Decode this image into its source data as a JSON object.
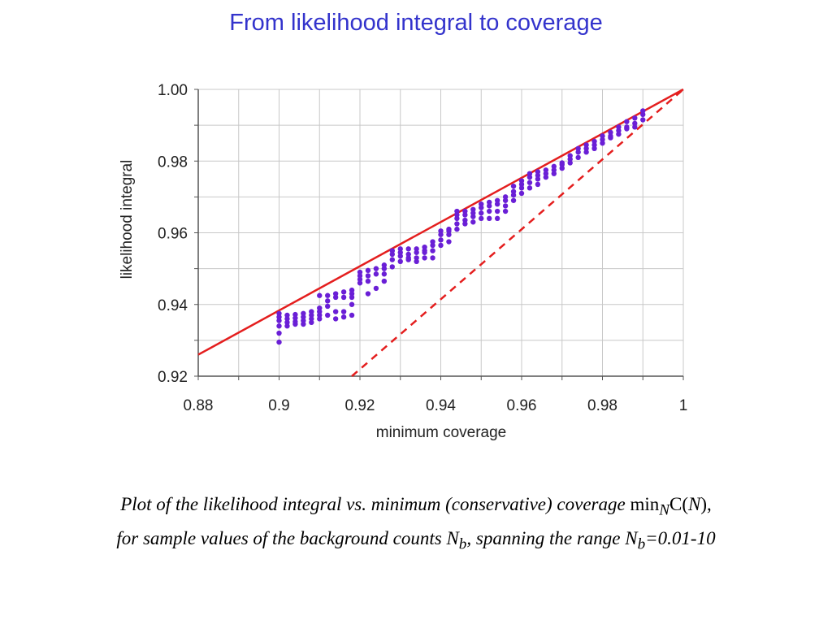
{
  "slide": {
    "title": "From likelihood integral to coverage"
  },
  "caption": {
    "line1_text": "Plot of the likelihood integral vs. minimum (conservative) coverage ",
    "line1_math_min": "min",
    "line1_math_sub": "N",
    "line1_math_C": "C(",
    "line1_math_N": "N",
    "line1_math_close": "),",
    "line2_text": "for sample values of  the background counts N",
    "line2_sub_b1": "b",
    "line2_mid": ", spanning the range N",
    "line2_sub_b2": "b",
    "line2_end": "=0.01-10"
  },
  "chart_data": {
    "type": "scatter",
    "xlabel": "minimum coverage",
    "ylabel": "likelihood integral",
    "xlim": [
      0.88,
      1.0
    ],
    "ylim": [
      0.92,
      1.0
    ],
    "x_ticks": [
      0.88,
      0.9,
      0.92,
      0.94,
      0.96,
      0.98,
      1.0
    ],
    "x_tick_labels": [
      "0.88",
      "0.9",
      "0.92",
      "0.94",
      "0.96",
      "0.98",
      "1"
    ],
    "y_ticks": [
      0.92,
      0.94,
      0.96,
      0.98,
      1.0
    ],
    "y_tick_labels": [
      "0.92",
      "0.94",
      "0.96",
      "0.98",
      "1.00"
    ],
    "grid": true,
    "colors": {
      "points": "#6a1fd6",
      "solid_line": "#e41e1e",
      "dashed_line": "#e41e1e",
      "grid": "#c8c8c8",
      "axis": "#555555"
    },
    "lines": [
      {
        "style": "solid",
        "x": [
          0.88,
          1.0
        ],
        "y": [
          0.926,
          1.0
        ]
      },
      {
        "style": "dashed",
        "x": [
          0.918,
          1.0
        ],
        "y": [
          0.92,
          1.0
        ]
      }
    ],
    "points": {
      "x": [
        0.9,
        0.9,
        0.9,
        0.9,
        0.9,
        0.9,
        0.902,
        0.902,
        0.902,
        0.902,
        0.904,
        0.904,
        0.904,
        0.904,
        0.906,
        0.906,
        0.906,
        0.906,
        0.908,
        0.908,
        0.908,
        0.908,
        0.91,
        0.91,
        0.91,
        0.91,
        0.91,
        0.912,
        0.912,
        0.912,
        0.912,
        0.914,
        0.914,
        0.914,
        0.914,
        0.916,
        0.916,
        0.916,
        0.916,
        0.918,
        0.918,
        0.918,
        0.918,
        0.918,
        0.92,
        0.92,
        0.92,
        0.92,
        0.922,
        0.922,
        0.922,
        0.922,
        0.924,
        0.924,
        0.924,
        0.926,
        0.926,
        0.926,
        0.926,
        0.928,
        0.928,
        0.928,
        0.928,
        0.93,
        0.93,
        0.93,
        0.93,
        0.932,
        0.932,
        0.932,
        0.932,
        0.934,
        0.934,
        0.934,
        0.934,
        0.936,
        0.936,
        0.936,
        0.936,
        0.938,
        0.938,
        0.938,
        0.938,
        0.94,
        0.94,
        0.94,
        0.94,
        0.942,
        0.942,
        0.942,
        0.942,
        0.944,
        0.944,
        0.944,
        0.944,
        0.944,
        0.946,
        0.946,
        0.946,
        0.946,
        0.948,
        0.948,
        0.948,
        0.948,
        0.95,
        0.95,
        0.95,
        0.95,
        0.952,
        0.952,
        0.952,
        0.952,
        0.954,
        0.954,
        0.954,
        0.954,
        0.956,
        0.956,
        0.956,
        0.956,
        0.958,
        0.958,
        0.958,
        0.958,
        0.96,
        0.96,
        0.96,
        0.96,
        0.962,
        0.962,
        0.962,
        0.962,
        0.964,
        0.964,
        0.964,
        0.964,
        0.966,
        0.966,
        0.966,
        0.968,
        0.968,
        0.968,
        0.97,
        0.97,
        0.97,
        0.972,
        0.972,
        0.972,
        0.974,
        0.974,
        0.974,
        0.976,
        0.976,
        0.976,
        0.978,
        0.978,
        0.978,
        0.98,
        0.98,
        0.98,
        0.982,
        0.982,
        0.982,
        0.984,
        0.984,
        0.984,
        0.986,
        0.986,
        0.986,
        0.988,
        0.988,
        0.988,
        0.99,
        0.99,
        0.99
      ],
      "y": [
        0.9375,
        0.9365,
        0.9355,
        0.934,
        0.932,
        0.9295,
        0.937,
        0.936,
        0.935,
        0.934,
        0.9372,
        0.9362,
        0.9352,
        0.9345,
        0.9375,
        0.9365,
        0.9355,
        0.9345,
        0.938,
        0.937,
        0.936,
        0.935,
        0.9425,
        0.939,
        0.938,
        0.937,
        0.936,
        0.9425,
        0.941,
        0.9395,
        0.937,
        0.943,
        0.942,
        0.938,
        0.936,
        0.9435,
        0.942,
        0.938,
        0.9365,
        0.944,
        0.943,
        0.942,
        0.94,
        0.937,
        0.949,
        0.948,
        0.947,
        0.946,
        0.9495,
        0.948,
        0.9465,
        0.943,
        0.95,
        0.9485,
        0.9445,
        0.951,
        0.95,
        0.9485,
        0.9465,
        0.955,
        0.954,
        0.9525,
        0.9505,
        0.9555,
        0.9545,
        0.9535,
        0.952,
        0.9555,
        0.954,
        0.9525,
        0.953,
        0.9555,
        0.9545,
        0.953,
        0.952,
        0.956,
        0.955,
        0.9545,
        0.953,
        0.9575,
        0.9565,
        0.955,
        0.953,
        0.9605,
        0.9595,
        0.958,
        0.9565,
        0.961,
        0.9605,
        0.9595,
        0.9575,
        0.966,
        0.965,
        0.964,
        0.9625,
        0.961,
        0.966,
        0.965,
        0.9635,
        0.9625,
        0.9665,
        0.9655,
        0.9645,
        0.963,
        0.968,
        0.967,
        0.9655,
        0.964,
        0.9685,
        0.9675,
        0.966,
        0.964,
        0.969,
        0.968,
        0.966,
        0.964,
        0.97,
        0.969,
        0.9675,
        0.966,
        0.973,
        0.9715,
        0.9705,
        0.969,
        0.9745,
        0.9735,
        0.9725,
        0.971,
        0.9765,
        0.9755,
        0.974,
        0.9725,
        0.977,
        0.976,
        0.975,
        0.9735,
        0.9775,
        0.9765,
        0.9755,
        0.9785,
        0.9775,
        0.9765,
        0.9795,
        0.979,
        0.978,
        0.9815,
        0.9805,
        0.9795,
        0.9835,
        0.9825,
        0.981,
        0.9845,
        0.9835,
        0.9825,
        0.9855,
        0.9845,
        0.9835,
        0.987,
        0.986,
        0.985,
        0.988,
        0.987,
        0.9865,
        0.9895,
        0.9885,
        0.9875,
        0.991,
        0.9895,
        0.989,
        0.992,
        0.9905,
        0.9895,
        0.994,
        0.993,
        0.9915
      ]
    }
  }
}
